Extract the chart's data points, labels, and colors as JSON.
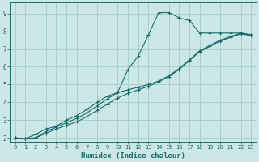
{
  "xlabel": "Humidex (Indice chaleur)",
  "ylabel": "",
  "xlim": [
    -0.5,
    23.5
  ],
  "ylim": [
    1.8,
    9.6
  ],
  "xticks": [
    0,
    1,
    2,
    3,
    4,
    5,
    6,
    7,
    8,
    9,
    10,
    11,
    12,
    13,
    14,
    15,
    16,
    17,
    18,
    19,
    20,
    21,
    22,
    23
  ],
  "yticks": [
    2,
    3,
    4,
    5,
    6,
    7,
    8,
    9
  ],
  "bg_color": "#cce8e6",
  "grid_color": "#aacfcd",
  "line_color": "#1a6b6b",
  "line1_x": [
    0,
    1,
    2,
    3,
    4,
    5,
    6,
    7,
    8,
    9,
    10,
    11,
    12,
    13,
    14,
    15,
    16,
    17,
    18,
    19,
    20,
    21,
    22,
    23
  ],
  "line1_y": [
    2.0,
    1.95,
    2.2,
    2.5,
    2.65,
    3.0,
    3.25,
    3.6,
    4.0,
    4.35,
    4.55,
    5.85,
    6.6,
    7.8,
    9.05,
    9.05,
    8.75,
    8.6,
    7.9,
    7.9,
    7.9,
    7.9,
    7.9,
    7.8
  ],
  "line2_x": [
    0,
    1,
    2,
    3,
    4,
    5,
    6,
    7,
    8,
    9,
    10,
    11,
    12,
    13,
    14,
    15,
    16,
    17,
    18,
    19,
    20,
    21,
    22,
    23
  ],
  "line2_y": [
    2.0,
    1.95,
    2.0,
    2.35,
    2.6,
    2.85,
    3.1,
    3.4,
    3.8,
    4.2,
    4.55,
    4.7,
    4.85,
    5.0,
    5.2,
    5.5,
    5.9,
    6.4,
    6.9,
    7.2,
    7.5,
    7.7,
    7.9,
    7.8
  ],
  "line3_x": [
    0,
    1,
    2,
    3,
    4,
    5,
    6,
    7,
    8,
    9,
    10,
    11,
    12,
    13,
    14,
    15,
    16,
    17,
    18,
    19,
    20,
    21,
    22,
    23
  ],
  "line3_y": [
    2.0,
    1.95,
    2.0,
    2.25,
    2.5,
    2.7,
    2.9,
    3.2,
    3.55,
    3.9,
    4.25,
    4.5,
    4.7,
    4.9,
    5.15,
    5.45,
    5.85,
    6.35,
    6.85,
    7.15,
    7.45,
    7.65,
    7.85,
    7.75
  ]
}
